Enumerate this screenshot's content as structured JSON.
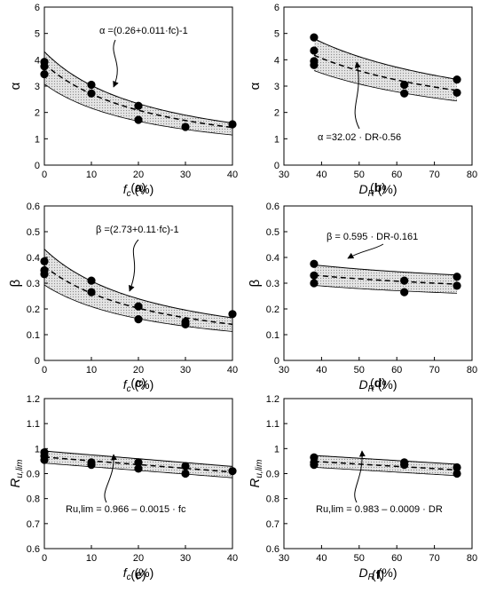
{
  "chart_data": [
    {
      "id": "a",
      "type": "scatter",
      "panel_label": "(a)",
      "ylabel": "α",
      "xlabel_main": "f",
      "xlabel_sub": "c",
      "xlabel_unit": " (%)",
      "xlim": [
        0,
        40
      ],
      "ylim": [
        0,
        6
      ],
      "xticks": [
        0,
        10,
        20,
        30,
        40
      ],
      "yticks": [
        0,
        1,
        2,
        3,
        4,
        5,
        6
      ],
      "equation": "α =(0.26+0.011·fₙ)⁻¹",
      "equation_text": "α =(0.26+0.011·fc)-1",
      "points": [
        [
          0,
          3.92
        ],
        [
          0,
          3.75
        ],
        [
          0,
          3.45
        ],
        [
          10,
          3.05
        ],
        [
          10,
          2.72
        ],
        [
          20,
          2.25
        ],
        [
          20,
          1.72
        ],
        [
          30,
          1.45
        ],
        [
          40,
          1.55
        ]
      ],
      "fit": "alpha_fc",
      "band_lower": 0.8,
      "band_upper": 1.12
    },
    {
      "id": "b",
      "type": "scatter",
      "panel_label": "(b)",
      "ylabel": "α",
      "xlabel_main": "D",
      "xlabel_sub": "R",
      "xlabel_unit": " (%)",
      "xlim": [
        30,
        80
      ],
      "ylim": [
        0,
        6
      ],
      "xticks": [
        30,
        40,
        50,
        60,
        70,
        80
      ],
      "yticks": [
        0,
        1,
        2,
        3,
        4,
        5,
        6
      ],
      "equation_text": "α =32.02 · DR-0.56",
      "points": [
        [
          38,
          4.85
        ],
        [
          38,
          4.35
        ],
        [
          38,
          3.95
        ],
        [
          38,
          3.8
        ],
        [
          62,
          3.05
        ],
        [
          62,
          2.72
        ],
        [
          76,
          3.25
        ],
        [
          76,
          2.75
        ]
      ],
      "fit": "alpha_dr",
      "band_lower": 0.86,
      "band_upper": 1.15
    },
    {
      "id": "c",
      "type": "scatter",
      "panel_label": "(c)",
      "ylabel": "β",
      "xlabel_main": "f",
      "xlabel_sub": "c",
      "xlabel_unit": " (%)",
      "xlim": [
        0,
        40
      ],
      "ylim": [
        0,
        0.6
      ],
      "xticks": [
        0,
        10,
        20,
        30,
        40
      ],
      "yticks": [
        0,
        0.1,
        0.2,
        0.3,
        0.4,
        0.5,
        0.6
      ],
      "equation_text": "β =(2.73+0.11·fc)-1",
      "points": [
        [
          0,
          0.385
        ],
        [
          0,
          0.35
        ],
        [
          0,
          0.335
        ],
        [
          10,
          0.31
        ],
        [
          10,
          0.265
        ],
        [
          20,
          0.21
        ],
        [
          20,
          0.16
        ],
        [
          30,
          0.15
        ],
        [
          30,
          0.14
        ],
        [
          40,
          0.18
        ]
      ],
      "fit": "beta_fc",
      "band_lower": 0.8,
      "band_upper": 1.18
    },
    {
      "id": "d",
      "type": "scatter",
      "panel_label": "(d)",
      "ylabel": "β",
      "xlabel_main": "D",
      "xlabel_sub": "R",
      "xlabel_unit": " (%)",
      "xlim": [
        30,
        80
      ],
      "ylim": [
        0,
        0.6
      ],
      "xticks": [
        30,
        40,
        50,
        60,
        70,
        80
      ],
      "yticks": [
        0,
        0.1,
        0.2,
        0.3,
        0.4,
        0.5,
        0.6
      ],
      "equation_text": "β = 0.595 · DR-0.161",
      "points": [
        [
          38,
          0.375
        ],
        [
          38,
          0.33
        ],
        [
          38,
          0.3
        ],
        [
          62,
          0.31
        ],
        [
          62,
          0.265
        ],
        [
          76,
          0.325
        ],
        [
          76,
          0.29
        ]
      ],
      "fit": "beta_dr",
      "band_lower": 0.88,
      "band_upper": 1.12
    },
    {
      "id": "e",
      "type": "scatter",
      "panel_label": "(e)",
      "ylabel": "R",
      "ylabel_sub": "u,lim",
      "xlabel_main": "f",
      "xlabel_sub": "c",
      "xlabel_unit": " (%)",
      "xlim": [
        0,
        40
      ],
      "ylim": [
        0.6,
        1.2
      ],
      "xticks": [
        0,
        10,
        20,
        30,
        40
      ],
      "yticks": [
        0.6,
        0.7,
        0.8,
        0.9,
        1,
        1.1,
        1.2
      ],
      "equation_text": "Ru,lim = 0.966 – 0.0015 · fc",
      "points": [
        [
          0,
          0.985
        ],
        [
          0,
          0.97
        ],
        [
          0,
          0.955
        ],
        [
          10,
          0.945
        ],
        [
          10,
          0.935
        ],
        [
          20,
          0.945
        ],
        [
          20,
          0.92
        ],
        [
          30,
          0.93
        ],
        [
          30,
          0.9
        ],
        [
          40,
          0.91
        ]
      ],
      "fit": "r_fc",
      "band_lower": 0.975,
      "band_upper": 1.025
    },
    {
      "id": "f",
      "type": "scatter",
      "panel_label": "(f)",
      "ylabel": "R",
      "ylabel_sub": "u,lim",
      "xlabel_main": "D",
      "xlabel_sub": "R",
      "xlabel_unit": " (%)",
      "xlim": [
        30,
        80
      ],
      "ylim": [
        0.6,
        1.2
      ],
      "xticks": [
        30,
        40,
        50,
        60,
        70,
        80
      ],
      "yticks": [
        0.6,
        0.7,
        0.8,
        0.9,
        1,
        1.1,
        1.2
      ],
      "equation_text": "Ru,lim = 0.983 – 0.0009 · DR",
      "points": [
        [
          38,
          0.965
        ],
        [
          38,
          0.945
        ],
        [
          38,
          0.935
        ],
        [
          62,
          0.945
        ],
        [
          62,
          0.935
        ],
        [
          76,
          0.925
        ],
        [
          76,
          0.9
        ]
      ],
      "fit": "r_dr",
      "band_lower": 0.975,
      "band_upper": 1.025
    }
  ],
  "colors": {
    "band": "#d9d9d9",
    "marker": "#000000",
    "axis": "#000000"
  }
}
